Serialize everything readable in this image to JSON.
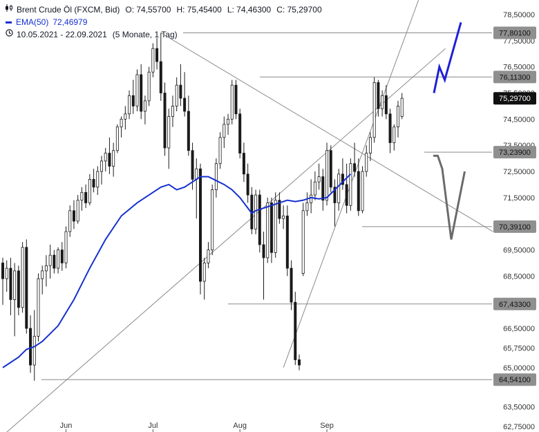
{
  "legend": {
    "instrument": "Brent Crude Öl (FXCM, Bid)",
    "open": "O: 74,55700",
    "high": "H: 75,45400",
    "low": "L: 74,46300",
    "close": "C: 75,29700",
    "ema_label": "EMA(50)",
    "ema_value": "72,46979",
    "date_range": "10.05.2021 - 22.09.2021",
    "range_extra": "(5 Monate, 1 Tag)"
  },
  "chart_data": {
    "type": "candlestick",
    "y_axis": {
      "min": 62.75,
      "max": 78.5,
      "position": "right",
      "ticks": [
        {
          "value": 78.5,
          "label": "78,50000"
        },
        {
          "value": 77.5,
          "label": "77,50000"
        },
        {
          "value": 76.5,
          "label": "76,50000"
        },
        {
          "value": 75.5,
          "label": "75,50000"
        },
        {
          "value": 74.5,
          "label": "74,50000"
        },
        {
          "value": 73.5,
          "label": "73,50000"
        },
        {
          "value": 72.5,
          "label": "72,50000"
        },
        {
          "value": 71.5,
          "label": "71,50000"
        },
        {
          "value": 69.5,
          "label": "69,50000"
        },
        {
          "value": 68.5,
          "label": "68,50000"
        },
        {
          "value": 66.5,
          "label": "66,50000"
        },
        {
          "value": 65.75,
          "label": "65,75000"
        },
        {
          "value": 65.0,
          "label": "65,00000"
        },
        {
          "value": 63.5,
          "label": "63,50000"
        },
        {
          "value": 62.75,
          "label": "62,75000"
        }
      ]
    },
    "x_axis": {
      "ticks": [
        {
          "label": "Jun",
          "index": 16
        },
        {
          "label": "Jul",
          "index": 38
        },
        {
          "label": "Aug",
          "index": 60
        },
        {
          "label": "Sep",
          "index": 82
        }
      ]
    },
    "price_levels": [
      {
        "value": 77.801,
        "label": "77,80100",
        "highlight": false
      },
      {
        "value": 76.113,
        "label": "76,11300",
        "highlight": false
      },
      {
        "value": 75.297,
        "label": "75,29700",
        "highlight": true
      },
      {
        "value": 73.239,
        "label": "73,23900",
        "highlight": false
      },
      {
        "value": 70.391,
        "label": "70,39100",
        "highlight": false
      },
      {
        "value": 67.433,
        "label": "67,43300",
        "highlight": false
      },
      {
        "value": 64.541,
        "label": "64,54100",
        "highlight": false
      }
    ],
    "candles": [
      {
        "o": 69.0,
        "h": 69.2,
        "l": 67.4,
        "c": 68.4
      },
      {
        "o": 68.4,
        "h": 69.1,
        "l": 67.9,
        "c": 68.8
      },
      {
        "o": 68.8,
        "h": 69.2,
        "l": 67.0,
        "c": 67.6
      },
      {
        "o": 67.6,
        "h": 69.0,
        "l": 66.2,
        "c": 68.7
      },
      {
        "o": 68.7,
        "h": 68.9,
        "l": 67.0,
        "c": 67.3
      },
      {
        "o": 67.3,
        "h": 69.8,
        "l": 67.1,
        "c": 69.6
      },
      {
        "o": 69.6,
        "h": 69.9,
        "l": 66.3,
        "c": 66.5
      },
      {
        "o": 66.5,
        "h": 67.0,
        "l": 64.8,
        "c": 65.1
      },
      {
        "o": 65.1,
        "h": 67.2,
        "l": 64.5,
        "c": 66.2
      },
      {
        "o": 66.2,
        "h": 68.6,
        "l": 66.0,
        "c": 68.4
      },
      {
        "o": 68.4,
        "h": 68.9,
        "l": 67.8,
        "c": 68.7
      },
      {
        "o": 68.7,
        "h": 69.3,
        "l": 68.1,
        "c": 68.9
      },
      {
        "o": 68.9,
        "h": 69.7,
        "l": 68.4,
        "c": 69.3
      },
      {
        "o": 69.3,
        "h": 69.5,
        "l": 68.6,
        "c": 68.8
      },
      {
        "o": 68.8,
        "h": 69.6,
        "l": 68.6,
        "c": 69.5
      },
      {
        "o": 69.5,
        "h": 69.8,
        "l": 68.7,
        "c": 69.0
      },
      {
        "o": 69.0,
        "h": 70.4,
        "l": 68.8,
        "c": 70.2
      },
      {
        "o": 70.2,
        "h": 71.2,
        "l": 70.0,
        "c": 71.0
      },
      {
        "o": 71.0,
        "h": 71.4,
        "l": 70.3,
        "c": 70.6
      },
      {
        "o": 70.6,
        "h": 71.6,
        "l": 70.5,
        "c": 71.4
      },
      {
        "o": 71.4,
        "h": 71.9,
        "l": 71.0,
        "c": 71.7
      },
      {
        "o": 71.7,
        "h": 72.0,
        "l": 71.1,
        "c": 71.3
      },
      {
        "o": 71.3,
        "h": 72.4,
        "l": 71.2,
        "c": 72.2
      },
      {
        "o": 72.2,
        "h": 72.6,
        "l": 71.7,
        "c": 71.9
      },
      {
        "o": 71.9,
        "h": 72.7,
        "l": 71.6,
        "c": 72.5
      },
      {
        "o": 72.5,
        "h": 73.1,
        "l": 72.0,
        "c": 72.9
      },
      {
        "o": 72.9,
        "h": 73.4,
        "l": 72.5,
        "c": 73.2
      },
      {
        "o": 73.2,
        "h": 73.8,
        "l": 72.4,
        "c": 72.7
      },
      {
        "o": 72.7,
        "h": 73.6,
        "l": 72.3,
        "c": 73.3
      },
      {
        "o": 73.3,
        "h": 74.3,
        "l": 73.2,
        "c": 74.2
      },
      {
        "o": 74.2,
        "h": 74.6,
        "l": 73.8,
        "c": 74.5
      },
      {
        "o": 74.5,
        "h": 75.0,
        "l": 74.1,
        "c": 74.7
      },
      {
        "o": 74.7,
        "h": 75.6,
        "l": 74.5,
        "c": 75.4
      },
      {
        "o": 75.4,
        "h": 76.0,
        "l": 74.7,
        "c": 75.0
      },
      {
        "o": 75.0,
        "h": 76.4,
        "l": 74.8,
        "c": 76.2
      },
      {
        "o": 76.2,
        "h": 76.6,
        "l": 74.5,
        "c": 74.8
      },
      {
        "o": 74.8,
        "h": 75.4,
        "l": 74.3,
        "c": 75.2
      },
      {
        "o": 75.2,
        "h": 76.5,
        "l": 75.0,
        "c": 76.3
      },
      {
        "o": 76.3,
        "h": 77.4,
        "l": 76.1,
        "c": 77.2
      },
      {
        "o": 77.2,
        "h": 77.6,
        "l": 76.4,
        "c": 76.7
      },
      {
        "o": 76.7,
        "h": 77.8,
        "l": 75.2,
        "c": 75.5
      },
      {
        "o": 75.5,
        "h": 75.9,
        "l": 73.1,
        "c": 73.4
      },
      {
        "o": 73.4,
        "h": 74.9,
        "l": 72.6,
        "c": 74.6
      },
      {
        "o": 74.6,
        "h": 75.4,
        "l": 74.2,
        "c": 75.0
      },
      {
        "o": 75.0,
        "h": 76.1,
        "l": 74.8,
        "c": 75.8
      },
      {
        "o": 75.8,
        "h": 76.6,
        "l": 75.0,
        "c": 75.3
      },
      {
        "o": 75.3,
        "h": 76.3,
        "l": 74.6,
        "c": 74.8
      },
      {
        "o": 74.8,
        "h": 75.4,
        "l": 73.1,
        "c": 73.3
      },
      {
        "o": 73.3,
        "h": 73.6,
        "l": 71.8,
        "c": 72.2
      },
      {
        "o": 72.2,
        "h": 73.0,
        "l": 70.7,
        "c": 72.6
      },
      {
        "o": 72.6,
        "h": 72.8,
        "l": 67.8,
        "c": 68.3
      },
      {
        "o": 68.3,
        "h": 69.2,
        "l": 67.6,
        "c": 69.0
      },
      {
        "o": 69.0,
        "h": 69.8,
        "l": 68.8,
        "c": 69.5
      },
      {
        "o": 69.5,
        "h": 72.0,
        "l": 69.3,
        "c": 71.8
      },
      {
        "o": 71.8,
        "h": 73.0,
        "l": 71.5,
        "c": 72.8
      },
      {
        "o": 72.8,
        "h": 74.0,
        "l": 72.6,
        "c": 73.8
      },
      {
        "o": 73.8,
        "h": 74.6,
        "l": 73.4,
        "c": 74.3
      },
      {
        "o": 74.3,
        "h": 74.7,
        "l": 73.9,
        "c": 74.5
      },
      {
        "o": 74.5,
        "h": 76.0,
        "l": 74.3,
        "c": 75.8
      },
      {
        "o": 75.8,
        "h": 76.0,
        "l": 74.5,
        "c": 74.7
      },
      {
        "o": 74.7,
        "h": 74.9,
        "l": 73.0,
        "c": 73.2
      },
      {
        "o": 73.2,
        "h": 73.6,
        "l": 72.1,
        "c": 72.4
      },
      {
        "o": 72.4,
        "h": 72.8,
        "l": 71.3,
        "c": 71.6
      },
      {
        "o": 71.6,
        "h": 71.9,
        "l": 70.1,
        "c": 70.3
      },
      {
        "o": 70.3,
        "h": 71.8,
        "l": 70.1,
        "c": 71.6
      },
      {
        "o": 71.6,
        "h": 71.8,
        "l": 69.4,
        "c": 69.7
      },
      {
        "o": 69.7,
        "h": 70.2,
        "l": 67.6,
        "c": 69.2
      },
      {
        "o": 69.2,
        "h": 71.5,
        "l": 69.0,
        "c": 71.3
      },
      {
        "o": 71.3,
        "h": 71.5,
        "l": 69.0,
        "c": 69.4
      },
      {
        "o": 69.4,
        "h": 71.7,
        "l": 69.2,
        "c": 71.4
      },
      {
        "o": 71.4,
        "h": 71.7,
        "l": 70.5,
        "c": 70.7
      },
      {
        "o": 70.7,
        "h": 71.2,
        "l": 70.3,
        "c": 70.8
      },
      {
        "o": 70.8,
        "h": 71.2,
        "l": 68.5,
        "c": 68.8
      },
      {
        "o": 68.8,
        "h": 69.1,
        "l": 67.2,
        "c": 67.5
      },
      {
        "o": 67.5,
        "h": 67.9,
        "l": 65.1,
        "c": 65.3
      },
      {
        "o": 65.3,
        "h": 65.5,
        "l": 64.9,
        "c": 65.1
      },
      {
        "o": 68.6,
        "h": 71.3,
        "l": 68.5,
        "c": 71.0
      },
      {
        "o": 71.0,
        "h": 71.7,
        "l": 70.8,
        "c": 71.3
      },
      {
        "o": 71.3,
        "h": 72.2,
        "l": 70.9,
        "c": 71.6
      },
      {
        "o": 71.6,
        "h": 72.5,
        "l": 71.4,
        "c": 72.1
      },
      {
        "o": 72.1,
        "h": 72.8,
        "l": 71.8,
        "c": 72.3
      },
      {
        "o": 72.3,
        "h": 72.6,
        "l": 71.0,
        "c": 71.4
      },
      {
        "o": 71.4,
        "h": 73.6,
        "l": 71.2,
        "c": 73.3
      },
      {
        "o": 73.3,
        "h": 73.5,
        "l": 71.7,
        "c": 71.9
      },
      {
        "o": 71.9,
        "h": 72.2,
        "l": 70.4,
        "c": 71.3
      },
      {
        "o": 71.3,
        "h": 72.6,
        "l": 71.0,
        "c": 72.4
      },
      {
        "o": 72.4,
        "h": 73.0,
        "l": 71.8,
        "c": 72.0
      },
      {
        "o": 72.0,
        "h": 72.8,
        "l": 70.9,
        "c": 71.2
      },
      {
        "o": 71.2,
        "h": 73.0,
        "l": 71.0,
        "c": 72.8
      },
      {
        "o": 72.8,
        "h": 73.6,
        "l": 72.3,
        "c": 72.5
      },
      {
        "o": 72.5,
        "h": 73.0,
        "l": 70.8,
        "c": 71.0
      },
      {
        "o": 71.0,
        "h": 72.7,
        "l": 70.9,
        "c": 72.5
      },
      {
        "o": 72.5,
        "h": 73.5,
        "l": 72.3,
        "c": 73.2
      },
      {
        "o": 73.2,
        "h": 74.0,
        "l": 72.9,
        "c": 73.8
      },
      {
        "o": 73.8,
        "h": 76.1,
        "l": 73.6,
        "c": 75.9
      },
      {
        "o": 75.9,
        "h": 76.0,
        "l": 74.6,
        "c": 74.9
      },
      {
        "o": 74.9,
        "h": 75.6,
        "l": 74.6,
        "c": 75.4
      },
      {
        "o": 75.4,
        "h": 75.8,
        "l": 74.5,
        "c": 74.7
      },
      {
        "o": 74.7,
        "h": 74.9,
        "l": 73.2,
        "c": 73.6
      },
      {
        "o": 73.6,
        "h": 74.3,
        "l": 73.3,
        "c": 74.2
      },
      {
        "o": 74.2,
        "h": 75.2,
        "l": 73.8,
        "c": 75.0
      },
      {
        "o": 74.6,
        "h": 75.5,
        "l": 74.5,
        "c": 75.3
      }
    ],
    "ema50": [
      [
        0,
        65.0
      ],
      [
        4,
        65.4
      ],
      [
        6,
        65.7
      ],
      [
        8,
        65.8
      ],
      [
        10,
        66.0
      ],
      [
        12,
        66.3
      ],
      [
        14,
        66.6
      ],
      [
        18,
        67.6
      ],
      [
        22,
        68.8
      ],
      [
        26,
        69.9
      ],
      [
        30,
        70.8
      ],
      [
        34,
        71.3
      ],
      [
        38,
        71.7
      ],
      [
        40,
        71.9
      ],
      [
        42,
        72.0
      ],
      [
        44,
        71.8
      ],
      [
        46,
        71.9
      ],
      [
        48,
        72.1
      ],
      [
        50,
        72.3
      ],
      [
        52,
        72.3
      ],
      [
        54,
        72.15
      ],
      [
        56,
        72.0
      ],
      [
        58,
        71.8
      ],
      [
        60,
        71.5
      ],
      [
        62,
        71.1
      ],
      [
        63,
        70.9
      ],
      [
        64,
        71.0
      ],
      [
        66,
        71.1
      ],
      [
        68,
        71.2
      ],
      [
        70,
        71.3
      ],
      [
        72,
        71.4
      ],
      [
        74,
        71.35
      ],
      [
        76,
        71.4
      ],
      [
        78,
        71.5
      ],
      [
        80,
        71.45
      ],
      [
        82,
        71.5
      ],
      [
        84,
        71.8
      ],
      [
        86,
        72.1
      ],
      [
        88,
        72.4
      ]
    ],
    "candle_lines": [
      {
        "from": [
          0,
          62.4
        ],
        "to": [
          112,
          77.2
        ]
      },
      {
        "from": [
          40,
          77.8
        ],
        "to": [
          124,
          70.2
        ]
      },
      {
        "from": [
          71,
          65.0
        ],
        "to": [
          107,
          79.8
        ]
      }
    ],
    "projection_up": [
      [
        0,
        75.5
      ],
      [
        1,
        76.5
      ],
      [
        2,
        76.0
      ],
      [
        5,
        78.2
      ]
    ],
    "projection_down": [
      [
        0,
        73.1
      ],
      [
        1,
        73.1
      ],
      [
        2,
        72.6
      ],
      [
        4,
        69.9
      ],
      [
        7,
        72.5
      ]
    ]
  }
}
